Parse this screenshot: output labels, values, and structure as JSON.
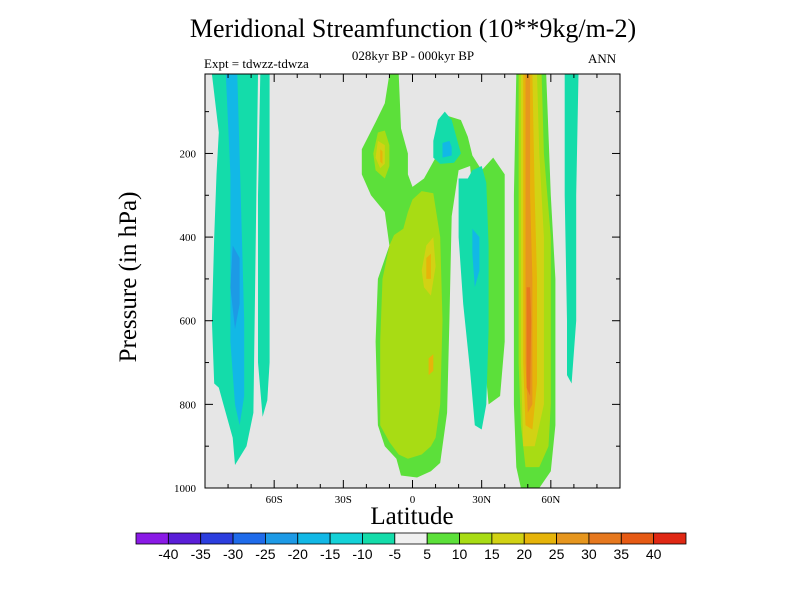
{
  "chart_data": {
    "type": "heatmap",
    "title": "Meridional Streamfunction (10**9kg/m-2)",
    "subtitle": "028kyr BP - 000kyr BP",
    "expt_label": "Expt = tdwzz-tdwza",
    "season": "ANN",
    "xlabel": "Latitude",
    "ylabel": "Pressure (in hPa)",
    "x_ticks": [
      {
        "value": -60,
        "label": "60S"
      },
      {
        "value": -30,
        "label": "30S"
      },
      {
        "value": 0,
        "label": "0"
      },
      {
        "value": 30,
        "label": "30N"
      },
      {
        "value": 60,
        "label": "60N"
      }
    ],
    "y_ticks": [
      {
        "value": 200,
        "label": "200"
      },
      {
        "value": 400,
        "label": "400"
      },
      {
        "value": 600,
        "label": "600"
      },
      {
        "value": 800,
        "label": "800"
      },
      {
        "value": 1000,
        "label": "1000"
      }
    ],
    "xlim": [
      -90,
      90
    ],
    "ylim": [
      1000,
      10
    ],
    "background_color": "#e6e6e6",
    "colorbar": {
      "labels": [
        "-40",
        "-35",
        "-30",
        "-25",
        "-20",
        "-15",
        "-10",
        "-5",
        "5",
        "10",
        "15",
        "20",
        "25",
        "30",
        "35",
        "40"
      ],
      "colors": [
        "#8a1ae6",
        "#5a1ed8",
        "#2c3ede",
        "#1f6bea",
        "#1d9ae6",
        "#12b8e6",
        "#14d2d8",
        "#14dcaa",
        "#f0f0f0",
        "#5ce03a",
        "#a8dc14",
        "#d2d214",
        "#e6b40a",
        "#e6961e",
        "#e6781e",
        "#e65a14",
        "#e02814"
      ]
    },
    "contour_regions": [
      {
        "color": "#14dcaa",
        "points": [
          [
            -87,
            10
          ],
          [
            -84,
            150
          ],
          [
            -85,
            250
          ],
          [
            -86,
            400
          ],
          [
            -87,
            600
          ],
          [
            -86,
            750
          ],
          [
            -84,
            760
          ],
          [
            -82,
            800
          ],
          [
            -78,
            880
          ],
          [
            -77,
            945
          ],
          [
            -72,
            900
          ],
          [
            -69,
            820
          ],
          [
            -67,
            10
          ]
        ]
      },
      {
        "color": "#14dcaa",
        "points": [
          [
            -66,
            10
          ],
          [
            -67,
            300
          ],
          [
            -67,
            700
          ],
          [
            -65,
            830
          ],
          [
            -63,
            790
          ],
          [
            -62,
            700
          ],
          [
            -62,
            10
          ]
        ]
      },
      {
        "color": "#12b8e6",
        "points": [
          [
            -81,
            10
          ],
          [
            -79,
            250
          ],
          [
            -79,
            500
          ],
          [
            -79,
            650
          ],
          [
            -77,
            800
          ],
          [
            -75,
            850
          ],
          [
            -73,
            780
          ],
          [
            -73,
            600
          ],
          [
            -74,
            400
          ],
          [
            -76,
            10
          ]
        ]
      },
      {
        "color": "#1d9ae6",
        "points": [
          [
            -78,
            420
          ],
          [
            -79,
            520
          ],
          [
            -77,
            620
          ],
          [
            -75,
            560
          ],
          [
            -75,
            450
          ]
        ]
      },
      {
        "color": "#5ce03a",
        "points": [
          [
            -10,
            10
          ],
          [
            -12,
            80
          ],
          [
            -16,
            125
          ],
          [
            -22,
            190
          ],
          [
            -22,
            250
          ],
          [
            -18,
            300
          ],
          [
            -12,
            340
          ],
          [
            -10,
            420
          ],
          [
            -15,
            500
          ],
          [
            -16,
            650
          ],
          [
            -15,
            850
          ],
          [
            -12,
            900
          ],
          [
            -7,
            930
          ],
          [
            -5,
            970
          ],
          [
            2,
            975
          ],
          [
            8,
            960
          ],
          [
            12,
            940
          ],
          [
            15,
            820
          ],
          [
            16,
            600
          ],
          [
            17,
            350
          ],
          [
            20,
            240
          ],
          [
            25,
            230
          ],
          [
            28,
            400
          ],
          [
            30,
            600
          ],
          [
            32,
            740
          ],
          [
            33,
            800
          ],
          [
            38,
            780
          ],
          [
            40,
            650
          ],
          [
            40,
            250
          ],
          [
            35,
            210
          ],
          [
            30,
            240
          ],
          [
            26,
            205
          ],
          [
            24,
            160
          ],
          [
            21,
            120
          ],
          [
            15,
            110
          ],
          [
            12,
            160
          ],
          [
            11,
            200
          ],
          [
            5,
            260
          ],
          [
            0,
            280
          ],
          [
            -2,
            250
          ],
          [
            -2,
            200
          ],
          [
            -5,
            140
          ],
          [
            -6,
            10
          ]
        ]
      },
      {
        "color": "#a8dc14",
        "points": [
          [
            -15,
            150
          ],
          [
            -17,
            200
          ],
          [
            -16,
            240
          ],
          [
            -12,
            260
          ],
          [
            -10,
            230
          ],
          [
            -10,
            180
          ],
          [
            -12,
            145
          ]
        ]
      },
      {
        "color": "#a8dc14",
        "points": [
          [
            -10,
            420
          ],
          [
            -13,
            500
          ],
          [
            -14,
            650
          ],
          [
            -14,
            850
          ],
          [
            -10,
            890
          ],
          [
            -6,
            920
          ],
          [
            -2,
            930
          ],
          [
            4,
            920
          ],
          [
            8,
            900
          ],
          [
            10,
            880
          ],
          [
            12,
            800
          ],
          [
            13,
            600
          ],
          [
            12,
            400
          ],
          [
            9,
            295
          ],
          [
            4,
            290
          ],
          [
            0,
            310
          ],
          [
            -2,
            340
          ],
          [
            -4,
            380
          ],
          [
            -8,
            395
          ]
        ]
      },
      {
        "color": "#d2d214",
        "points": [
          [
            -15,
            170
          ],
          [
            -16,
            210
          ],
          [
            -14,
            235
          ],
          [
            -12,
            225
          ],
          [
            -12,
            180
          ]
        ]
      },
      {
        "color": "#d2d214",
        "points": [
          [
            6,
            420
          ],
          [
            4,
            480
          ],
          [
            5,
            520
          ],
          [
            8,
            540
          ],
          [
            10,
            470
          ],
          [
            9,
            400
          ]
        ]
      },
      {
        "color": "#e6b40a",
        "points": [
          [
            -14,
            190
          ],
          [
            -14,
            220
          ],
          [
            -13,
            225
          ],
          [
            -13,
            195
          ]
        ]
      },
      {
        "color": "#e6b40a",
        "points": [
          [
            6,
            450
          ],
          [
            6,
            500
          ],
          [
            8,
            500
          ],
          [
            8,
            440
          ]
        ]
      },
      {
        "color": "#e6b40a",
        "points": [
          [
            7,
            690
          ],
          [
            7,
            730
          ],
          [
            9,
            720
          ],
          [
            9,
            680
          ]
        ]
      },
      {
        "color": "#14dcaa",
        "points": [
          [
            9,
            170
          ],
          [
            9,
            210
          ],
          [
            12,
            225
          ],
          [
            18,
            222
          ],
          [
            21,
            200
          ],
          [
            19,
            160
          ],
          [
            17,
            120
          ],
          [
            14,
            100
          ],
          [
            11,
            120
          ]
        ]
      },
      {
        "color": "#12b8e6",
        "points": [
          [
            13,
            175
          ],
          [
            13,
            210
          ],
          [
            17,
            205
          ],
          [
            17,
            185
          ],
          [
            16,
            170
          ]
        ]
      },
      {
        "color": "#14dcaa",
        "points": [
          [
            20,
            260
          ],
          [
            20,
            400
          ],
          [
            22,
            560
          ],
          [
            25,
            720
          ],
          [
            27,
            850
          ],
          [
            30,
            860
          ],
          [
            32,
            800
          ],
          [
            33,
            620
          ],
          [
            33,
            420
          ],
          [
            32,
            270
          ],
          [
            30,
            230
          ],
          [
            26,
            240
          ],
          [
            24,
            260
          ]
        ]
      },
      {
        "color": "#12b8e6",
        "points": [
          [
            26,
            380
          ],
          [
            26,
            440
          ],
          [
            27,
            520
          ],
          [
            29,
            480
          ],
          [
            29,
            400
          ]
        ]
      },
      {
        "color": "#5ce03a",
        "points": [
          [
            45,
            10
          ],
          [
            44,
            300
          ],
          [
            44,
            600
          ],
          [
            44,
            800
          ],
          [
            45,
            950
          ],
          [
            47,
            1000
          ],
          [
            55,
            1000
          ],
          [
            60,
            960
          ],
          [
            62,
            850
          ],
          [
            62,
            500
          ],
          [
            60,
            300
          ],
          [
            58,
            10
          ]
        ]
      },
      {
        "color": "#a8dc14",
        "points": [
          [
            46,
            10
          ],
          [
            46,
            300
          ],
          [
            46,
            700
          ],
          [
            47,
            850
          ],
          [
            49,
            950
          ],
          [
            55,
            950
          ],
          [
            59,
            900
          ],
          [
            60,
            800
          ],
          [
            60,
            400
          ],
          [
            57,
            200
          ],
          [
            56,
            10
          ]
        ]
      },
      {
        "color": "#d2d214",
        "points": [
          [
            47,
            10
          ],
          [
            47,
            350
          ],
          [
            47,
            700
          ],
          [
            48,
            900
          ],
          [
            53,
            900
          ],
          [
            57,
            800
          ],
          [
            57,
            400
          ],
          [
            55,
            200
          ],
          [
            54,
            10
          ]
        ]
      },
      {
        "color": "#e6b40a",
        "points": [
          [
            48,
            10
          ],
          [
            48,
            400
          ],
          [
            48,
            700
          ],
          [
            49,
            850
          ],
          [
            52,
            860
          ],
          [
            54,
            750
          ],
          [
            54,
            500
          ],
          [
            53,
            300
          ],
          [
            52,
            10
          ]
        ]
      },
      {
        "color": "#e6961e",
        "points": [
          [
            49,
            10
          ],
          [
            49,
            400
          ],
          [
            49,
            700
          ],
          [
            50,
            820
          ],
          [
            52,
            800
          ],
          [
            52,
            500
          ],
          [
            51,
            300
          ],
          [
            51,
            10
          ]
        ]
      },
      {
        "color": "#e6781e",
        "points": [
          [
            49.5,
            520
          ],
          [
            49.5,
            760
          ],
          [
            51,
            780
          ],
          [
            51.5,
            600
          ],
          [
            51,
            520
          ]
        ]
      },
      {
        "color": "#14dcaa",
        "points": [
          [
            66,
            10
          ],
          [
            66,
            300
          ],
          [
            67,
            600
          ],
          [
            67,
            730
          ],
          [
            69,
            750
          ],
          [
            71,
            600
          ],
          [
            71,
            300
          ],
          [
            72,
            10
          ]
        ]
      }
    ]
  }
}
